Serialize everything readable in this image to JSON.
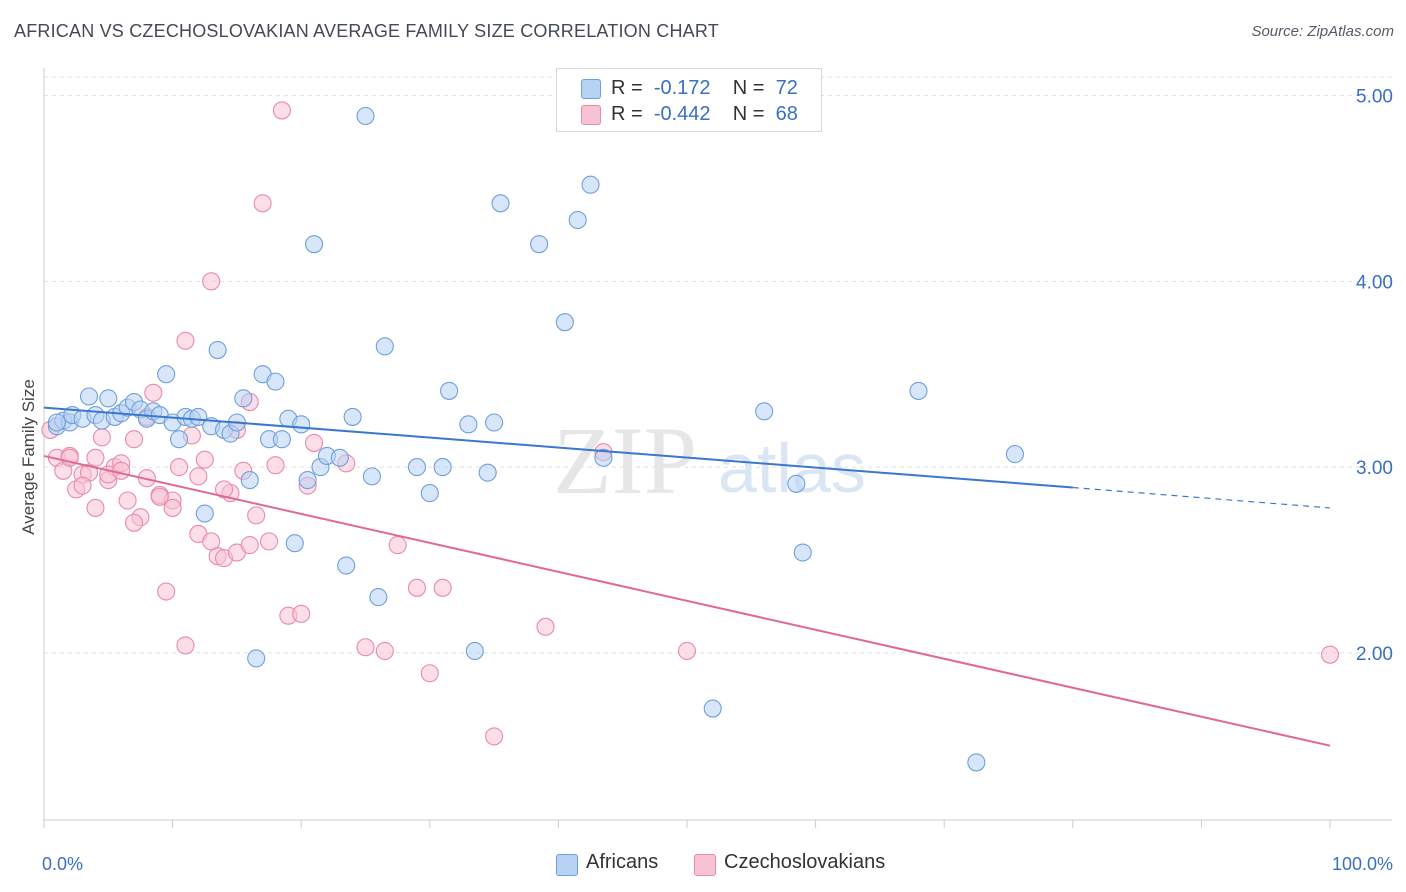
{
  "title": "AFRICAN VS CZECHOSLOVAKIAN AVERAGE FAMILY SIZE CORRELATION CHART",
  "source": "Source: ZipAtlas.com",
  "watermark": {
    "zip": "ZIP",
    "atlas": "atlas"
  },
  "legend": {
    "r_label": "R =",
    "n_label": "N =",
    "africans": {
      "r": "-0.172",
      "n": "72"
    },
    "czechoslovakians": {
      "r": "-0.442",
      "n": "68"
    }
  },
  "bottom_legend": {
    "africans": "Africans",
    "czechoslovakians": "Czechoslovakians"
  },
  "colors": {
    "blue_fill": "#b8d2f4",
    "blue_stroke": "#6f9fdc",
    "blue_line": "#3a78d0",
    "pink_fill": "#f7c3d3",
    "pink_stroke": "#e98aaa",
    "pink_line": "#e0698f",
    "axis_text": "#3a6fc4",
    "grid": "#e0e0e0"
  },
  "chart_data": {
    "type": "scatter",
    "ylabel": "Average Family Size",
    "xlabel": "",
    "xlim": [
      0,
      100
    ],
    "ylim": [
      1.1,
      5.1
    ],
    "x_tick_labels": [
      {
        "value": 0,
        "label": "0.0%"
      },
      {
        "value": 100,
        "label": "100.0%"
      }
    ],
    "y_ticks": [
      {
        "value": 2.0,
        "label": "2.00"
      },
      {
        "value": 3.0,
        "label": "3.00"
      },
      {
        "value": 4.0,
        "label": "4.00"
      },
      {
        "value": 5.0,
        "label": "5.00"
      }
    ],
    "grid": "horizontal dashed",
    "series": [
      {
        "name": "Africans",
        "trend": {
          "x0": 0,
          "y0": 3.32,
          "x1": 80,
          "y1": 2.89,
          "dashed_to": 100,
          "dashed_y": 2.78
        },
        "points": [
          [
            1,
            3.22
          ],
          [
            1.5,
            3.25
          ],
          [
            2,
            3.24
          ],
          [
            2.2,
            3.28
          ],
          [
            3,
            3.26
          ],
          [
            3.5,
            3.38
          ],
          [
            4,
            3.28
          ],
          [
            4.5,
            3.25
          ],
          [
            5,
            3.37
          ],
          [
            5.5,
            3.27
          ],
          [
            6,
            3.29
          ],
          [
            6.5,
            3.32
          ],
          [
            7,
            3.35
          ],
          [
            7.5,
            3.31
          ],
          [
            8,
            3.26
          ],
          [
            8.5,
            3.3
          ],
          [
            9,
            3.28
          ],
          [
            9.5,
            3.5
          ],
          [
            10,
            3.24
          ],
          [
            10.5,
            3.15
          ],
          [
            11,
            3.27
          ],
          [
            11.5,
            3.26
          ],
          [
            12,
            3.27
          ],
          [
            12.5,
            2.75
          ],
          [
            13,
            3.22
          ],
          [
            13.5,
            3.63
          ],
          [
            14,
            3.2
          ],
          [
            14.5,
            3.18
          ],
          [
            15,
            3.24
          ],
          [
            15.5,
            3.37
          ],
          [
            16,
            2.93
          ],
          [
            16.5,
            1.97
          ],
          [
            17,
            3.5
          ],
          [
            17.5,
            3.15
          ],
          [
            18,
            3.46
          ],
          [
            18.5,
            3.15
          ],
          [
            19,
            3.26
          ],
          [
            19.5,
            2.59
          ],
          [
            20,
            3.23
          ],
          [
            20.5,
            2.93
          ],
          [
            21,
            4.2
          ],
          [
            21.5,
            3.0
          ],
          [
            22,
            3.06
          ],
          [
            23,
            3.05
          ],
          [
            23.5,
            2.47
          ],
          [
            24,
            3.27
          ],
          [
            25,
            4.89
          ],
          [
            25.5,
            2.95
          ],
          [
            26,
            2.3
          ],
          [
            26.5,
            3.65
          ],
          [
            29,
            3.0
          ],
          [
            30,
            2.86
          ],
          [
            31,
            3.0
          ],
          [
            31.5,
            3.41
          ],
          [
            33,
            3.23
          ],
          [
            33.5,
            2.01
          ],
          [
            34.5,
            2.97
          ],
          [
            35,
            3.24
          ],
          [
            35.5,
            4.42
          ],
          [
            38.5,
            4.2
          ],
          [
            40.5,
            3.78
          ],
          [
            41.5,
            4.33
          ],
          [
            42.5,
            4.52
          ],
          [
            43.5,
            3.05
          ],
          [
            52,
            1.7
          ],
          [
            56,
            3.3
          ],
          [
            58.5,
            2.91
          ],
          [
            59,
            2.54
          ],
          [
            68,
            3.41
          ],
          [
            72.5,
            1.41
          ],
          [
            75.5,
            3.07
          ],
          [
            1,
            3.24
          ]
        ]
      },
      {
        "name": "Czechoslovakians",
        "trend": {
          "x0": 0,
          "y0": 3.06,
          "x1": 100,
          "y1": 1.5
        },
        "points": [
          [
            0.5,
            3.2
          ],
          [
            1,
            3.05
          ],
          [
            1.5,
            2.98
          ],
          [
            2,
            3.06
          ],
          [
            2.5,
            2.88
          ],
          [
            3,
            2.96
          ],
          [
            3.5,
            2.97
          ],
          [
            4,
            2.78
          ],
          [
            4.5,
            3.16
          ],
          [
            5,
            2.93
          ],
          [
            5.5,
            3.0
          ],
          [
            6,
            3.02
          ],
          [
            6.5,
            2.82
          ],
          [
            7,
            3.15
          ],
          [
            7.5,
            2.73
          ],
          [
            8,
            2.94
          ],
          [
            8.5,
            3.4
          ],
          [
            9,
            2.85
          ],
          [
            9.5,
            2.33
          ],
          [
            10,
            2.82
          ],
          [
            10.5,
            3.0
          ],
          [
            11,
            3.68
          ],
          [
            11.5,
            3.17
          ],
          [
            12,
            2.64
          ],
          [
            12.5,
            3.04
          ],
          [
            13,
            4.0
          ],
          [
            13.5,
            2.52
          ],
          [
            14,
            2.51
          ],
          [
            14.5,
            2.86
          ],
          [
            15,
            2.54
          ],
          [
            15.5,
            2.98
          ],
          [
            16,
            3.35
          ],
          [
            16.5,
            2.74
          ],
          [
            17,
            4.42
          ],
          [
            17.5,
            2.6
          ],
          [
            18,
            3.01
          ],
          [
            18.5,
            4.92
          ],
          [
            19,
            2.2
          ],
          [
            20,
            2.21
          ],
          [
            20.5,
            2.9
          ],
          [
            21,
            3.13
          ],
          [
            23.5,
            3.02
          ],
          [
            25,
            2.03
          ],
          [
            26.5,
            2.01
          ],
          [
            27.5,
            2.58
          ],
          [
            29,
            2.35
          ],
          [
            30,
            1.89
          ],
          [
            31,
            2.35
          ],
          [
            35,
            1.55
          ],
          [
            39,
            2.14
          ],
          [
            43.5,
            3.08
          ],
          [
            50,
            2.01
          ],
          [
            100,
            1.99
          ],
          [
            2,
            3.05
          ],
          [
            3,
            2.9
          ],
          [
            4,
            3.05
          ],
          [
            5,
            2.96
          ],
          [
            6,
            2.98
          ],
          [
            7,
            2.7
          ],
          [
            8,
            3.27
          ],
          [
            9,
            2.84
          ],
          [
            10,
            2.78
          ],
          [
            11,
            2.04
          ],
          [
            12,
            2.95
          ],
          [
            13,
            2.6
          ],
          [
            14,
            2.88
          ],
          [
            15,
            3.2
          ],
          [
            16,
            2.58
          ]
        ]
      }
    ]
  }
}
